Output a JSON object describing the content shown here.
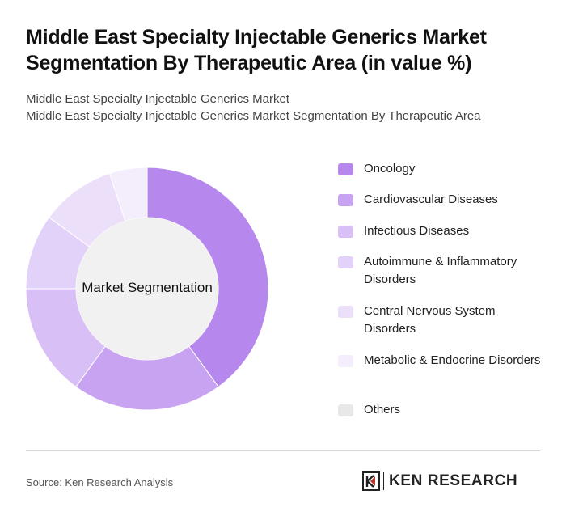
{
  "title": "Middle East Specialty Injectable Generics Market Segmentation By Therapeutic Area (in value %)",
  "subtitle_line1": "Middle East Specialty Injectable Generics Market",
  "subtitle_line2": "Middle East Specialty Injectable Generics Market Segmentation By Therapeutic Area",
  "center_label": "Market Segmentation",
  "source": "Source: Ken Research Analysis",
  "brand": {
    "name": "KEN RESEARCH",
    "icon": "ken-research-logo-icon"
  },
  "chart_data": {
    "type": "pie",
    "donut": true,
    "legend_position": "right",
    "categories": [
      "Oncology",
      "Cardiovascular Diseases",
      "Infectious Diseases",
      "Autoimmune & Inflammatory Disorders",
      "Central Nervous System Disorders",
      "Metabolic & Endocrine Disorders",
      "Others"
    ],
    "values": [
      40,
      20,
      15,
      10,
      10,
      5,
      0
    ],
    "colors": [
      "#b688ee",
      "#c8a3f2",
      "#d8bff6",
      "#e2d1f8",
      "#ecdffa",
      "#f4eefc",
      "#e8e8e8"
    ]
  }
}
